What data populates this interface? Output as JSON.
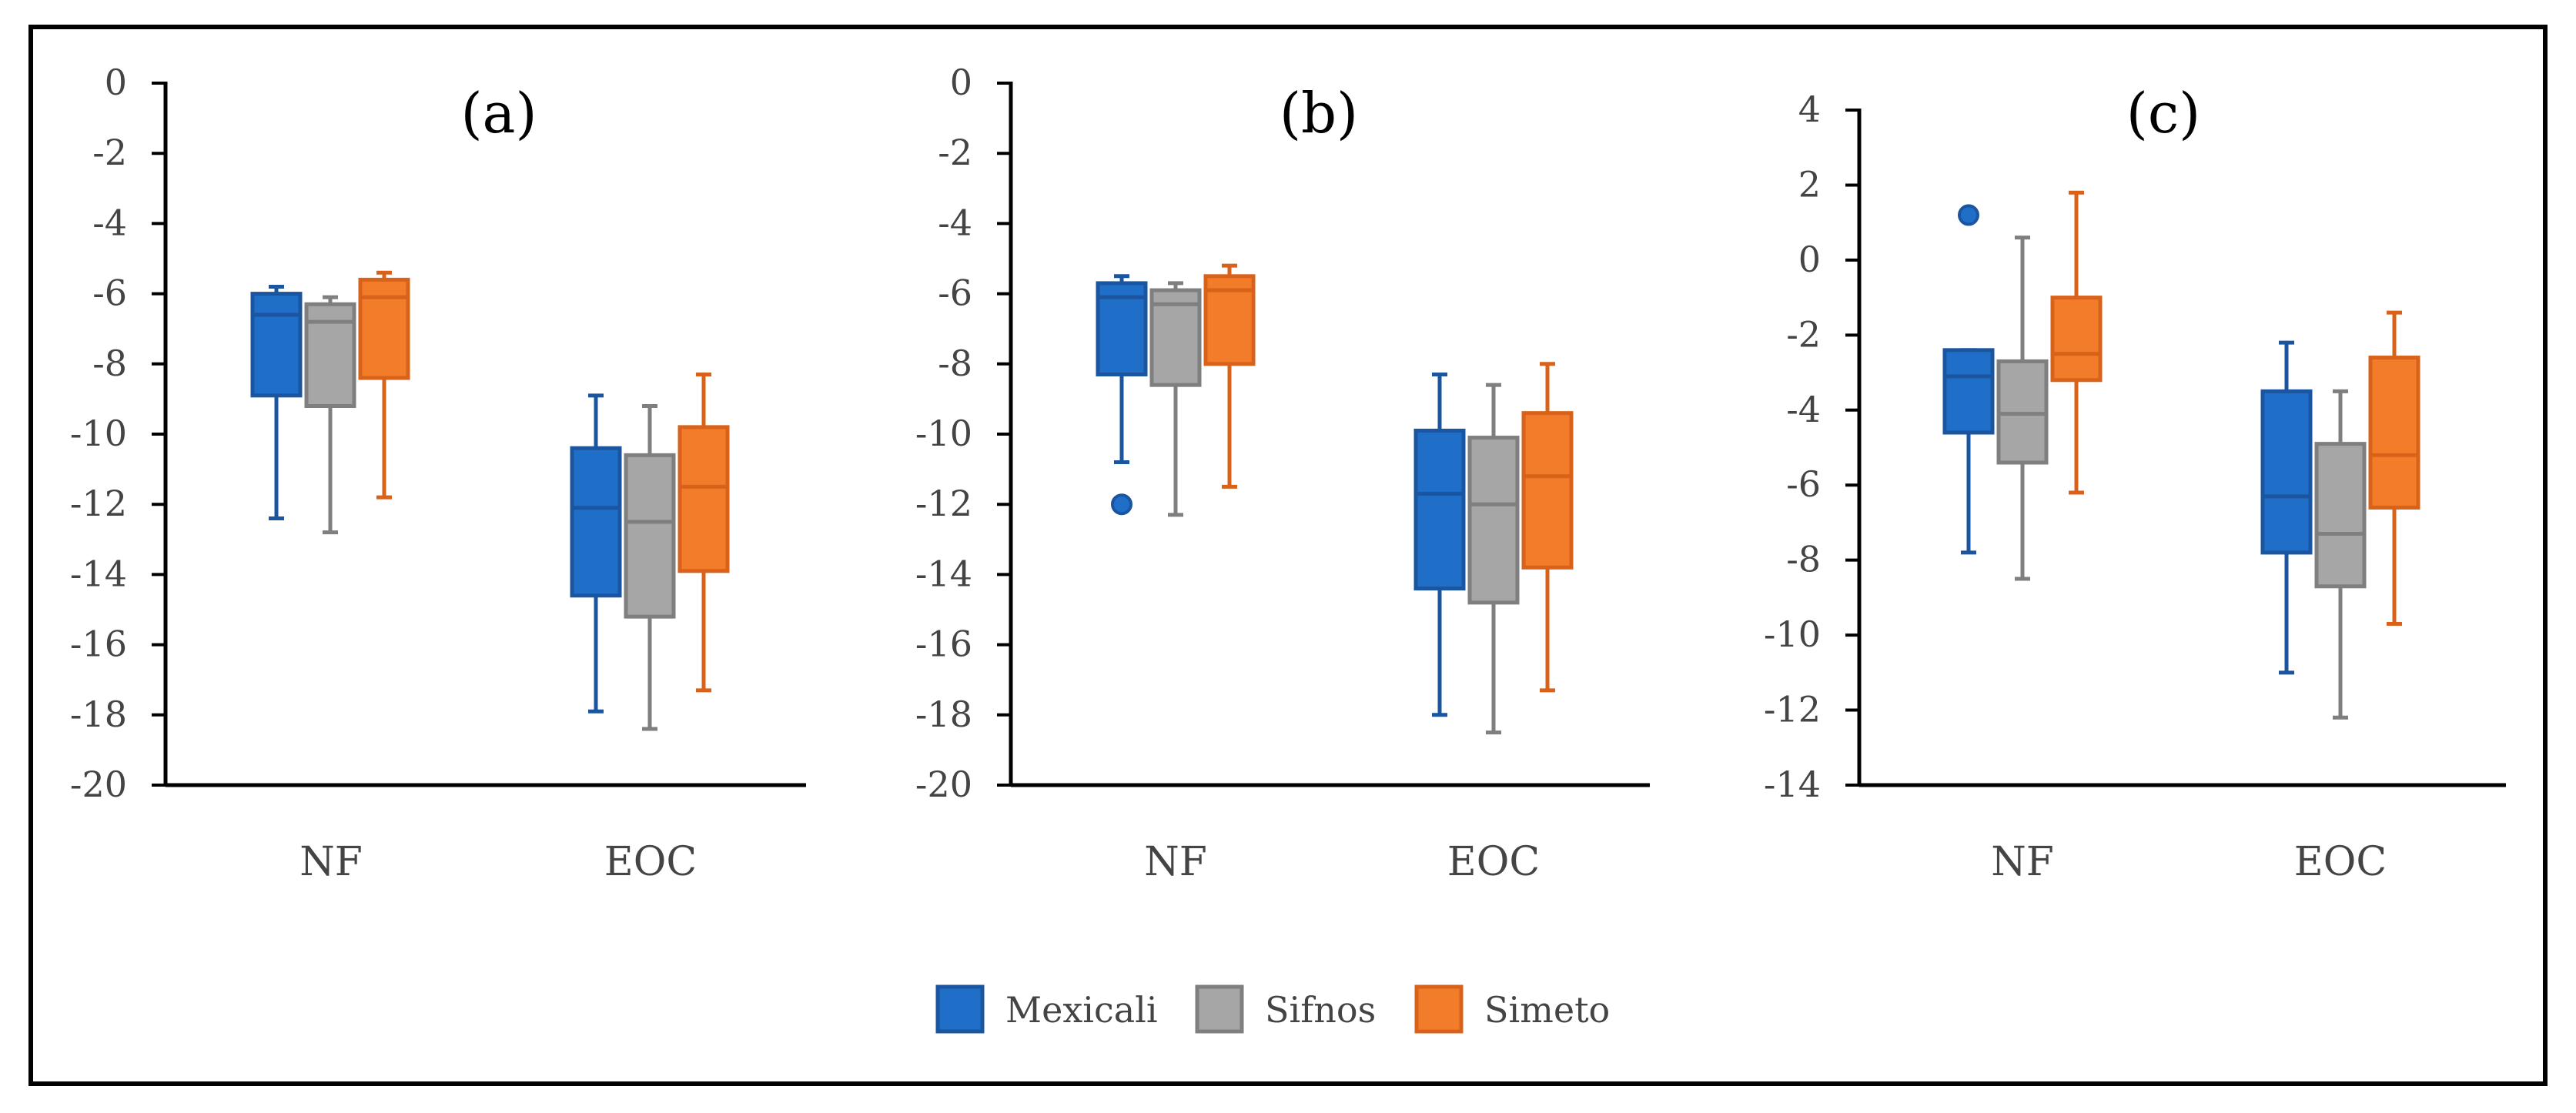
{
  "figure": {
    "legend_position": "bottom-center"
  },
  "colors": {
    "Mexicali": {
      "fill": "#1f6fc8",
      "stroke": "#1b55a0"
    },
    "Sifnos": {
      "fill": "#a6a6a6",
      "stroke": "#7f7f7f"
    },
    "Simeto": {
      "fill": "#f27c2a",
      "stroke": "#d8621a"
    }
  },
  "legend": [
    "Mexicali",
    "Sifnos",
    "Simeto"
  ],
  "chart_data": [
    {
      "type": "boxplot",
      "title": "(a)",
      "xlabel": "",
      "ylabel": "",
      "ylim": [
        -20,
        0
      ],
      "yticks": [
        "0",
        "-2",
        "-4",
        "-6",
        "-8",
        "-10",
        "-12",
        "-14",
        "-16",
        "-18",
        "-20"
      ],
      "ytick_values": [
        0,
        -2,
        -4,
        -6,
        -8,
        -10,
        -12,
        -14,
        -16,
        -18,
        -20
      ],
      "categories": [
        "NF",
        "EOC"
      ],
      "series": [
        {
          "name": "Mexicali",
          "boxes": [
            {
              "min": -12.4,
              "q1": -8.9,
              "median": -6.6,
              "q3": -6.0,
              "max": -5.8,
              "outliers": []
            },
            {
              "min": -17.9,
              "q1": -14.6,
              "median": -12.1,
              "q3": -10.4,
              "max": -8.9,
              "outliers": []
            }
          ]
        },
        {
          "name": "Sifnos",
          "boxes": [
            {
              "min": -12.8,
              "q1": -9.2,
              "median": -6.8,
              "q3": -6.3,
              "max": -6.1,
              "outliers": []
            },
            {
              "min": -18.4,
              "q1": -15.2,
              "median": -12.5,
              "q3": -10.6,
              "max": -9.2,
              "outliers": []
            }
          ]
        },
        {
          "name": "Simeto",
          "boxes": [
            {
              "min": -11.8,
              "q1": -8.4,
              "median": -6.1,
              "q3": -5.6,
              "max": -5.4,
              "outliers": []
            },
            {
              "min": -17.3,
              "q1": -13.9,
              "median": -11.5,
              "q3": -9.8,
              "max": -8.3,
              "outliers": []
            }
          ]
        }
      ]
    },
    {
      "type": "boxplot",
      "title": "(b)",
      "xlabel": "",
      "ylabel": "",
      "ylim": [
        -20,
        0
      ],
      "yticks": [
        "0",
        "-2",
        "-4",
        "-6",
        "-8",
        "-10",
        "-12",
        "-14",
        "-16",
        "-18",
        "-20"
      ],
      "ytick_values": [
        0,
        -2,
        -4,
        -6,
        -8,
        -10,
        -12,
        -14,
        -16,
        -18,
        -20
      ],
      "categories": [
        "NF",
        "EOC"
      ],
      "series": [
        {
          "name": "Mexicali",
          "boxes": [
            {
              "min": -10.8,
              "q1": -8.3,
              "median": -6.1,
              "q3": -5.7,
              "max": -5.5,
              "outliers": [
                -12.0
              ]
            },
            {
              "min": -18.0,
              "q1": -14.4,
              "median": -11.7,
              "q3": -9.9,
              "max": -8.3,
              "outliers": []
            }
          ]
        },
        {
          "name": "Sifnos",
          "boxes": [
            {
              "min": -12.3,
              "q1": -8.6,
              "median": -6.3,
              "q3": -5.9,
              "max": -5.7,
              "outliers": []
            },
            {
              "min": -18.5,
              "q1": -14.8,
              "median": -12.0,
              "q3": -10.1,
              "max": -8.6,
              "outliers": []
            }
          ]
        },
        {
          "name": "Simeto",
          "boxes": [
            {
              "min": -11.5,
              "q1": -8.0,
              "median": -5.9,
              "q3": -5.5,
              "max": -5.2,
              "outliers": []
            },
            {
              "min": -17.3,
              "q1": -13.8,
              "median": -11.2,
              "q3": -9.4,
              "max": -8.0,
              "outliers": []
            }
          ]
        }
      ]
    },
    {
      "type": "boxplot",
      "title": "(c)",
      "xlabel": "",
      "ylabel": "",
      "ylim": [
        -14,
        4
      ],
      "yticks": [
        "4",
        "2",
        "0",
        "-2",
        "-4",
        "-6",
        "-8",
        "-10",
        "-12",
        "-14"
      ],
      "ytick_values": [
        4,
        2,
        0,
        -2,
        -4,
        -6,
        -8,
        -10,
        -12,
        -14
      ],
      "categories": [
        "NF",
        "EOC"
      ],
      "series": [
        {
          "name": "Mexicali",
          "boxes": [
            {
              "min": -7.8,
              "q1": -4.6,
              "median": -3.1,
              "q3": -2.4,
              "max": -2.4,
              "outliers": [
                1.2
              ]
            },
            {
              "min": -11.0,
              "q1": -7.8,
              "median": -6.3,
              "q3": -3.5,
              "max": -2.2,
              "outliers": []
            }
          ]
        },
        {
          "name": "Sifnos",
          "boxes": [
            {
              "min": -8.5,
              "q1": -5.4,
              "median": -4.1,
              "q3": -2.7,
              "max": 0.6,
              "outliers": []
            },
            {
              "min": -12.2,
              "q1": -8.7,
              "median": -7.3,
              "q3": -4.9,
              "max": -3.5,
              "outliers": []
            }
          ]
        },
        {
          "name": "Simeto",
          "boxes": [
            {
              "min": -6.2,
              "q1": -3.2,
              "median": -2.5,
              "q3": -1.0,
              "max": 1.8,
              "outliers": []
            },
            {
              "min": -9.7,
              "q1": -6.6,
              "median": -5.2,
              "q3": -2.6,
              "max": -1.4,
              "outliers": []
            }
          ]
        }
      ]
    }
  ]
}
